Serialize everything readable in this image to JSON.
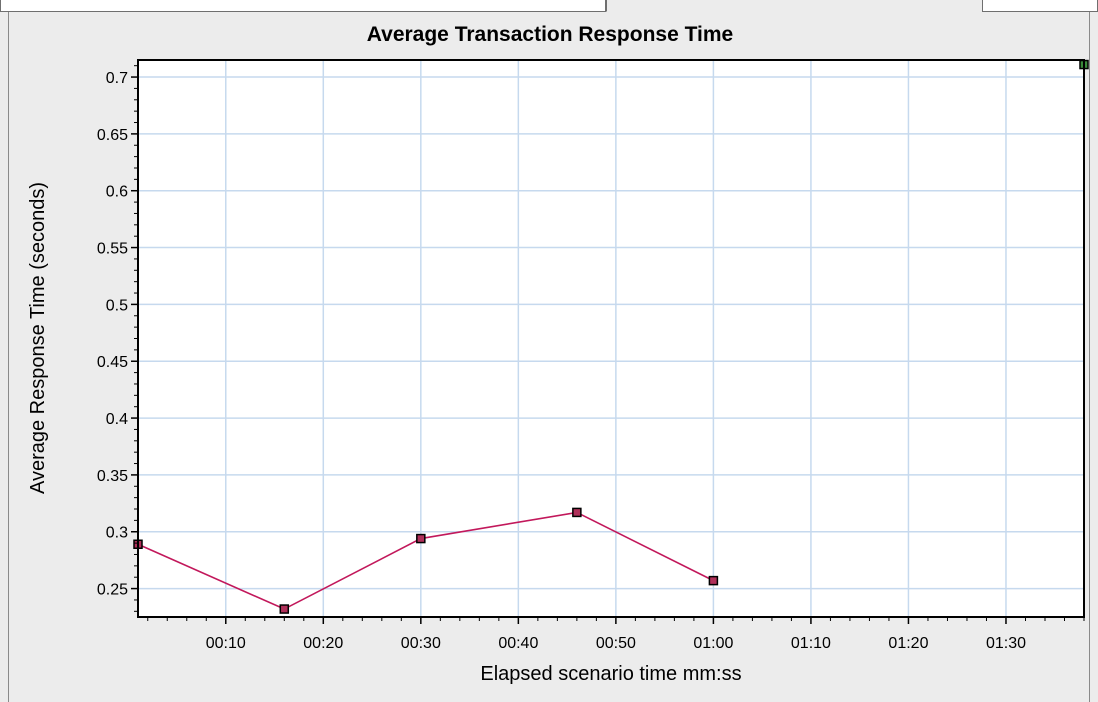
{
  "chart_data": {
    "type": "line",
    "title": "Average Transaction Response Time",
    "xlabel": "Elapsed scenario time mm:ss",
    "ylabel": "Average Response Time (seconds)",
    "xlim": [
      1,
      98
    ],
    "ylim": [
      0.225,
      0.715
    ],
    "x_ticks": [
      10,
      20,
      30,
      40,
      50,
      60,
      70,
      80,
      90
    ],
    "x_tick_labels": [
      "00:10",
      "00:20",
      "00:30",
      "00:40",
      "00:50",
      "01:00",
      "01:10",
      "01:20",
      "01:30"
    ],
    "y_ticks": [
      0.25,
      0.3,
      0.35,
      0.4,
      0.45,
      0.5,
      0.55,
      0.6,
      0.65,
      0.7
    ],
    "y_tick_labels": [
      "0.25",
      "0.3",
      "0.35",
      "0.4",
      "0.45",
      "0.5",
      "0.55",
      "0.6",
      "0.65",
      "0.7"
    ],
    "grid": true,
    "series": [
      {
        "color": "#c2185b",
        "marker_color": "#b0305a",
        "points": [
          {
            "x": 1,
            "y": 0.289
          },
          {
            "x": 16,
            "y": 0.232
          },
          {
            "x": 30,
            "y": 0.294
          },
          {
            "x": 46,
            "y": 0.317
          },
          {
            "x": 60,
            "y": 0.257
          }
        ]
      },
      {
        "color": "#2e7d32",
        "marker_color": "#3a8a3a",
        "points": [
          {
            "x": 98,
            "y": 0.711
          }
        ]
      }
    ],
    "colors": {
      "plot_background": "#ffffff",
      "grid": "#c6d9ee",
      "frame": "#000000"
    }
  }
}
